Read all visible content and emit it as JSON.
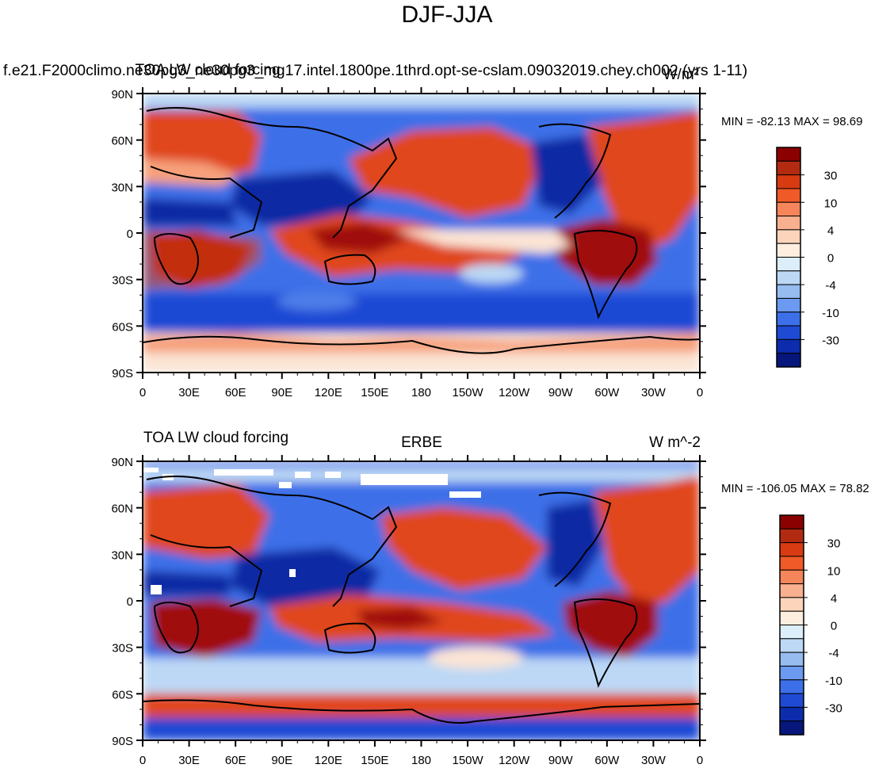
{
  "title": "DJF-JJA",
  "panels": [
    {
      "left_label": "f.e21.F2000climo.ne30pg3_ne30pg3_mg17.intel.1800pe.1thrd.opt-se-cslam.09032019.chey.ch002 (yrs 1-11)",
      "center_label": "TOA LW cloud forcing",
      "right_label": "W/m²",
      "stats": "MIN = -82.13 MAX =  98.69",
      "lat_labels": [
        "90N",
        "60N",
        "30N",
        "0",
        "30S",
        "60S",
        "90S"
      ],
      "lon_labels": [
        "0",
        "30E",
        "60E",
        "90E",
        "120E",
        "150E",
        "180",
        "150W",
        "120W",
        "90W",
        "60W",
        "30W",
        "0"
      ],
      "colorbar_labels": [
        "30",
        "10",
        "4",
        "0",
        "-4",
        "-10",
        "-30"
      ]
    },
    {
      "left_label": "TOA LW cloud forcing",
      "center_label": "ERBE",
      "right_label": "W m^-2",
      "stats": "MIN = -106.05 MAX =  78.82",
      "lat_labels": [
        "90N",
        "60N",
        "30N",
        "0",
        "30S",
        "60S",
        "90S"
      ],
      "lon_labels": [
        "0",
        "30E",
        "60E",
        "90E",
        "120E",
        "150E",
        "180",
        "150W",
        "120W",
        "90W",
        "60W",
        "30W",
        "0"
      ],
      "colorbar_labels": [
        "30",
        "10",
        "4",
        "0",
        "-4",
        "-10",
        "-30"
      ]
    }
  ],
  "colorbar_colors": [
    "#8b0000",
    "#b22a10",
    "#d83a12",
    "#f05a28",
    "#f5855a",
    "#f9b08e",
    "#fcd4bc",
    "#fdeee0",
    "#dceefa",
    "#bcd8f5",
    "#96bcf0",
    "#6b9af0",
    "#3d70e8",
    "#1f4ad4",
    "#0c2cac",
    "#06167a"
  ],
  "colors": {
    "land_outline": "#000000",
    "strong_warm": "#a01008",
    "warm": "#e0461a",
    "mild_warm": "#f6a07a",
    "neutral": "#fbe4d4",
    "mild_cool": "#bcd8f5",
    "cool": "#4d7ee8",
    "strong_cool": "#0a2aa4",
    "missing": "#ffffff"
  }
}
